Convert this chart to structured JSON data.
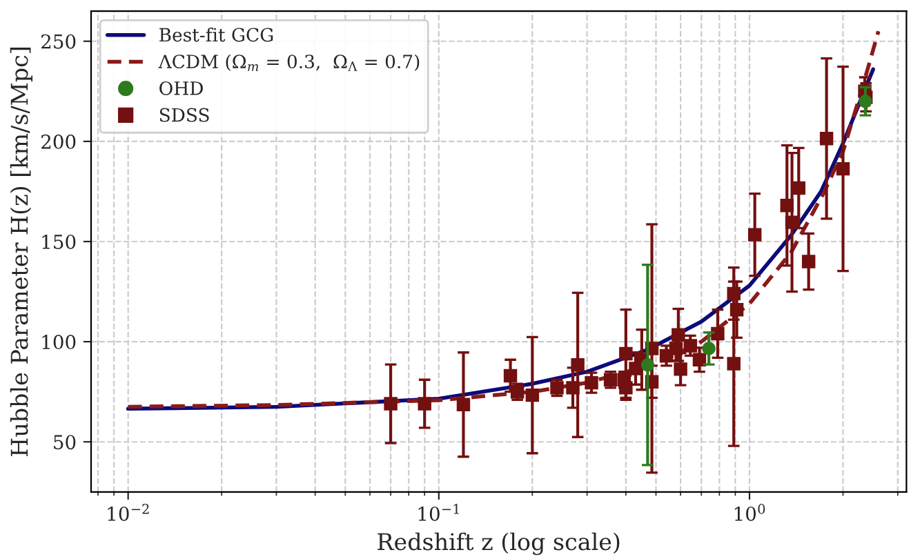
{
  "chart_data": {
    "type": "line",
    "xlabel": "Redshift z (log scale)",
    "ylabel": "Hubble Parameter H(z) [km/s/Mpc]",
    "log": "x",
    "grid": true,
    "legend": "top left",
    "xlim": [
      0.0076,
      3.2
    ],
    "ylim": [
      25,
      265
    ],
    "xticks": [
      {
        "value": 0.01,
        "label": "10$^{−2}$"
      },
      {
        "value": 0.1,
        "label": "10$^{−1}$"
      },
      {
        "value": 1,
        "label": "10$^{0}$"
      }
    ],
    "yticks": [
      50,
      100,
      150,
      200,
      250
    ],
    "series": [
      {
        "name": "Best-fit GCG",
        "color": "#0b0b7a",
        "line_style": "solid",
        "marker": "none",
        "x": [
          0.01,
          0.03,
          0.1,
          0.2,
          0.3,
          0.47,
          0.7,
          1.0,
          1.36,
          1.7,
          2.0,
          2.5
        ],
        "values": [
          66.5,
          67.5,
          71.5,
          79,
          85,
          96,
          110,
          128,
          153,
          175,
          199,
          236
        ]
      },
      {
        "name": "ΛCDM (Ω$_{m}$ = 0.3,  Ω$_{Λ}$ = 0.7)",
        "color": "#8b1a1a",
        "line_style": "dashed",
        "marker": "none",
        "x": [
          0.01,
          0.03,
          0.1,
          0.2,
          0.3,
          0.5,
          0.7,
          1.0,
          1.36,
          1.73,
          2.0,
          2.3,
          2.6
        ],
        "values": [
          67.5,
          68.4,
          70.8,
          75,
          79.5,
          89,
          100,
          119,
          144.5,
          174,
          195,
          226,
          255
        ]
      },
      {
        "name": "OHD",
        "type": "scatter",
        "color": "#2e7a1e",
        "marker": "circle",
        "x": [
          0.47,
          0.74,
          2.36
        ],
        "values": [
          88.4,
          96.6,
          220
        ],
        "errors": [
          50,
          8,
          7
        ]
      },
      {
        "name": "SDSS",
        "type": "scatter",
        "color": "#731010",
        "marker": "square",
        "x": [
          0.07,
          0.09,
          0.12,
          0.17,
          0.179,
          0.2,
          0.24,
          0.27,
          0.28,
          0.31,
          0.357,
          0.395,
          0.4,
          0.4,
          0.43,
          0.45,
          0.485,
          0.485,
          0.54,
          0.58,
          0.59,
          0.6,
          0.645,
          0.69,
          0.79,
          0.89,
          0.89,
          0.91,
          1.04,
          1.32,
          1.37,
          1.44,
          1.55,
          1.77,
          2.0,
          2.35,
          2.37
        ],
        "values": [
          69,
          69,
          68.6,
          83,
          75,
          73.3,
          77,
          77,
          88.4,
          79.5,
          81,
          81,
          94,
          77,
          86.6,
          91,
          96.6,
          80,
          93,
          96.6,
          103.4,
          86.3,
          98,
          91,
          104,
          124,
          89,
          116,
          153.4,
          168,
          159.6,
          176.7,
          140,
          201.4,
          186.3,
          225,
          222
        ],
        "errors": [
          19.6,
          12,
          26,
          8,
          4,
          29,
          4,
          10,
          36,
          5,
          4,
          4,
          22,
          6,
          8,
          15,
          62,
          8,
          5,
          6,
          13,
          8,
          5,
          6,
          12,
          13,
          41,
          14,
          20.5,
          30,
          34.6,
          20,
          14,
          40,
          51,
          7,
          7
        ]
      }
    ]
  }
}
